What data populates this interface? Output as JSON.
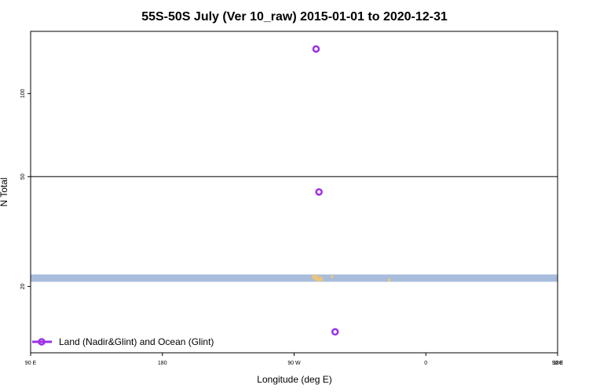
{
  "chart_data": {
    "type": "scatter",
    "title": "55S-50S July (Ver 10_raw)   2015-01-01 to 2020-12-31",
    "xlabel": "Longitude (deg E)",
    "ylabel": "N Total",
    "x_scale": "longitude starting at 90 E, wrapping eastward",
    "y_scale": "log",
    "xlim_deg_east": [
      90,
      450
    ],
    "x_ticks": [
      {
        "value": 90,
        "label": "90 E"
      },
      {
        "value": 180,
        "label": "180"
      },
      {
        "value": 270,
        "label": "90 W"
      },
      {
        "value": 360,
        "label": "0"
      },
      {
        "value": 450,
        "label": "90 E"
      },
      {
        "value": 540,
        "label": "180"
      }
    ],
    "ylim": [
      11.5,
      168
    ],
    "y_ticks": [
      {
        "value": 20,
        "label": "20"
      },
      {
        "value": 50,
        "label": "50"
      },
      {
        "value": 100,
        "label": "100"
      }
    ],
    "hline": 50,
    "band": {
      "y_min": 20.8,
      "y_max": 22.1,
      "color": "#a8bddb"
    },
    "band_scatter_color": "#f5c76c",
    "band_scatter": [
      {
        "x": 283,
        "y": 21.6
      },
      {
        "x": 284,
        "y": 21.9
      },
      {
        "x": 285,
        "y": 21.4
      },
      {
        "x": 286,
        "y": 21.7
      },
      {
        "x": 287,
        "y": 21.2
      },
      {
        "x": 288,
        "y": 21.5
      },
      {
        "x": 289,
        "y": 21.1
      },
      {
        "x": 284.5,
        "y": 21.3
      },
      {
        "x": 286.5,
        "y": 21.0
      },
      {
        "x": 296,
        "y": 21.7
      },
      {
        "x": 335,
        "y": 21.1
      }
    ],
    "series": [
      {
        "name": "Land (Nadir&Glint) and Ocean (Glint)",
        "color": "#9b30e8",
        "points": [
          {
            "x": 285,
            "y": 145
          },
          {
            "x": 287,
            "y": 44
          },
          {
            "x": 298,
            "y": 13.7
          }
        ]
      }
    ],
    "legend_position": "bottom-left"
  }
}
